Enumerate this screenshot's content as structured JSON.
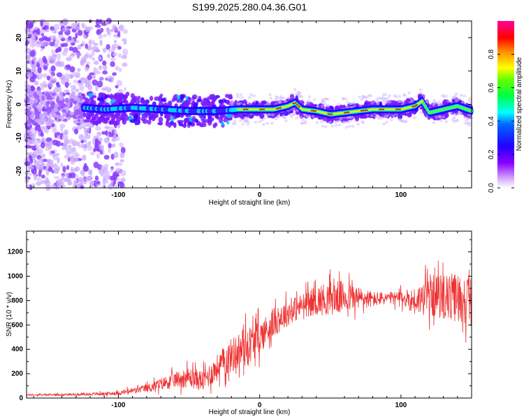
{
  "chart_data": [
    {
      "type": "heatmap",
      "title": "S199.2025.280.04.36.G01",
      "xlabel": "Height of straight line (km)",
      "ylabel": "Frequency (Hz)",
      "xlim": [
        -165,
        150
      ],
      "ylim": [
        -25,
        25
      ],
      "xticks": [
        -100,
        0,
        100
      ],
      "yticks": [
        -20,
        -10,
        0,
        10,
        20
      ],
      "colorbar": {
        "label": "Normalized spectral amplitude",
        "range": [
          0,
          1
        ],
        "ticks": [
          "0.0",
          "0.2",
          "0.4",
          "0.6",
          "0.8"
        ],
        "colors": [
          "#ffffff",
          "#cc99ff",
          "#7700ff",
          "#0000ff",
          "#00ffff",
          "#00ff00",
          "#ffff00",
          "#ff8800",
          "#ff0000",
          "#ff0099"
        ]
      },
      "ridge": {
        "description_free": true,
        "x": [
          -125,
          -110,
          -90,
          -70,
          -50,
          -30,
          -15,
          0,
          10,
          20,
          25,
          30,
          40,
          50,
          60,
          70,
          80,
          90,
          100,
          110,
          115,
          120,
          130,
          140,
          150
        ],
        "y": [
          -1,
          -1.5,
          -1,
          -1.5,
          -2,
          -2,
          -1.5,
          -1.5,
          -1.5,
          -0.5,
          0.5,
          -1.5,
          -2,
          -3,
          -2.5,
          -2,
          -1.5,
          -1.5,
          -1.5,
          -0.5,
          1,
          -2.5,
          -1.5,
          -0.5,
          -2
        ]
      }
    },
    {
      "type": "line",
      "title": "",
      "xlabel": "Height of straight line (km)",
      "ylabel": "SNR (10 * v/v)",
      "xlim": [
        -165,
        150
      ],
      "ylim": [
        0,
        1370
      ],
      "xticks": [
        -100,
        0,
        100
      ],
      "yticks": [
        0,
        200,
        400,
        600,
        800,
        1000,
        1200
      ],
      "series": [
        {
          "name": "SNR",
          "color": "#ee3333",
          "envelope": {
            "x": [
              -165,
              -140,
              -120,
              -100,
              -80,
              -60,
              -50,
              -40,
              -30,
              -20,
              -10,
              0,
              10,
              20,
              30,
              40,
              50,
              60,
              70,
              80,
              90,
              100,
              110,
              120,
              130,
              140,
              150
            ],
            "mean": [
              25,
              28,
              32,
              40,
              80,
              150,
              170,
              140,
              250,
              350,
              420,
              500,
              620,
              700,
              760,
              800,
              820,
              830,
              820,
              810,
              820,
              820,
              800,
              840,
              830,
              820,
              800
            ],
            "spread": [
              15,
              15,
              20,
              30,
              60,
              120,
              150,
              160,
              200,
              260,
              300,
              250,
              220,
              200,
              180,
              220,
              260,
              240,
              180,
              120,
              90,
              110,
              200,
              300,
              340,
              380,
              350
            ]
          }
        }
      ]
    }
  ]
}
